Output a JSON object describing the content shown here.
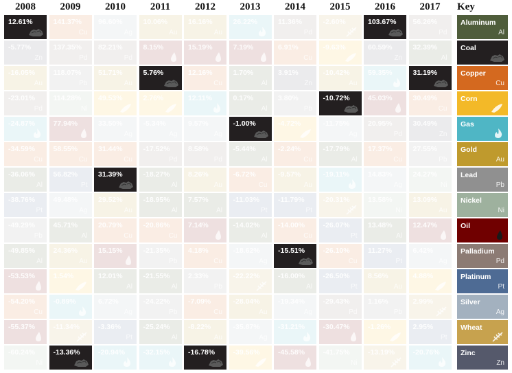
{
  "chart_data": {
    "type": "table",
    "title": "",
    "years": [
      "2008",
      "2009",
      "2010",
      "2011",
      "2012",
      "2013",
      "2014",
      "2015",
      "2016",
      "2017"
    ],
    "key_label": "Key",
    "commodities": [
      {
        "id": "aluminum",
        "name": "Aluminum",
        "symbol": "Al",
        "color": "#4f5d3b",
        "icon": "none"
      },
      {
        "id": "coal",
        "name": "Coal",
        "symbol": "",
        "color": "#231f20",
        "icon": "coal-icon"
      },
      {
        "id": "copper",
        "name": "Copper",
        "symbol": "Cu",
        "color": "#d4691f",
        "icon": "none"
      },
      {
        "id": "corn",
        "name": "Corn",
        "symbol": "",
        "color": "#f3b928",
        "icon": "corn-icon"
      },
      {
        "id": "gas",
        "name": "Gas",
        "symbol": "",
        "color": "#4fb6c5",
        "icon": "flame-icon"
      },
      {
        "id": "gold",
        "name": "Gold",
        "symbol": "Au",
        "color": "#bf9a2d",
        "icon": "none"
      },
      {
        "id": "lead",
        "name": "Lead",
        "symbol": "Pb",
        "color": "#909090",
        "icon": "none"
      },
      {
        "id": "nickel",
        "name": "Nickel",
        "symbol": "Ni",
        "color": "#9eb19e",
        "icon": "none"
      },
      {
        "id": "oil",
        "name": "Oil",
        "symbol": "",
        "color": "#700000",
        "icon": "drop-icon"
      },
      {
        "id": "palladium",
        "name": "Palladium",
        "symbol": "Pd",
        "color": "#8c7b74",
        "icon": "none"
      },
      {
        "id": "platinum",
        "name": "Platinum",
        "symbol": "Pt",
        "color": "#4e6b94",
        "icon": "none"
      },
      {
        "id": "silver",
        "name": "Silver",
        "symbol": "Ag",
        "color": "#a3b1bf",
        "icon": "none"
      },
      {
        "id": "wheat",
        "name": "Wheat",
        "symbol": "",
        "color": "#c7a24e",
        "icon": "wheat-icon"
      },
      {
        "id": "zinc",
        "name": "Zinc",
        "symbol": "Zn",
        "color": "#55596b",
        "icon": "none"
      }
    ],
    "columns": [
      {
        "year": "2008",
        "cells": [
          {
            "value": "12.61%",
            "commodity": "coal",
            "highlight": true
          },
          {
            "value": "-5.77%",
            "commodity": "zinc"
          },
          {
            "value": "-16.05%",
            "commodity": "gold"
          },
          {
            "value": "-23.01%",
            "commodity": "palladium"
          },
          {
            "value": "-24.87%",
            "commodity": "gas"
          },
          {
            "value": "-34.59%",
            "commodity": "copper"
          },
          {
            "value": "-36.06%",
            "commodity": "aluminum"
          },
          {
            "value": "-38.76%",
            "commodity": "platinum"
          },
          {
            "value": "-49.29%",
            "commodity": "lead"
          },
          {
            "value": "-49.85%",
            "commodity": "aluminum"
          },
          {
            "value": "-53.53%",
            "commodity": "oil"
          },
          {
            "value": "-54.20%",
            "commodity": "copper"
          },
          {
            "value": "-55.37%",
            "commodity": "oil"
          },
          {
            "value": "-60.24%",
            "commodity": "nickel"
          }
        ]
      },
      {
        "year": "2009",
        "cells": [
          {
            "value": "141.37%",
            "commodity": "copper"
          },
          {
            "value": "137.35%",
            "commodity": "palladium"
          },
          {
            "value": "118.07%",
            "commodity": "lead"
          },
          {
            "value": "114.28%",
            "commodity": "nickel"
          },
          {
            "value": "77.94%",
            "commodity": "oil"
          },
          {
            "value": "58.55%",
            "commodity": "copper"
          },
          {
            "value": "56.82%",
            "commodity": "platinum"
          },
          {
            "value": "49.48%",
            "commodity": "silver"
          },
          {
            "value": "45.71%",
            "commodity": "aluminum"
          },
          {
            "value": "24.36%",
            "commodity": "gold"
          },
          {
            "value": "1.54%",
            "commodity": "corn"
          },
          {
            "value": "-0.89%",
            "commodity": "gas"
          },
          {
            "value": "-11.34%",
            "commodity": "wheat"
          },
          {
            "value": "-13.36%",
            "commodity": "coal",
            "highlight": true
          }
        ]
      },
      {
        "year": "2010",
        "cells": [
          {
            "value": "96.60%",
            "commodity": "silver"
          },
          {
            "value": "82.21%",
            "commodity": "palladium"
          },
          {
            "value": "51.71%",
            "commodity": "gold"
          },
          {
            "value": "49.53%",
            "commodity": "corn"
          },
          {
            "value": "33.50%",
            "commodity": "silver"
          },
          {
            "value": "31.44%",
            "commodity": "copper"
          },
          {
            "value": "31.39%",
            "commodity": "coal",
            "highlight": true
          },
          {
            "value": "29.52%",
            "commodity": "gold"
          },
          {
            "value": "20.79%",
            "commodity": "copper"
          },
          {
            "value": "15.15%",
            "commodity": "oil"
          },
          {
            "value": "12.01%",
            "commodity": "aluminum"
          },
          {
            "value": "6.72%",
            "commodity": "silver"
          },
          {
            "value": "-3.36%",
            "commodity": "platinum"
          },
          {
            "value": "-20.94%",
            "commodity": "gas"
          }
        ]
      },
      {
        "year": "2011",
        "cells": [
          {
            "value": "10.06%",
            "commodity": "gold"
          },
          {
            "value": "8.15%",
            "commodity": "oil"
          },
          {
            "value": "5.76%",
            "commodity": "coal",
            "highlight": true
          },
          {
            "value": "2.76%",
            "commodity": "corn"
          },
          {
            "value": "-5.34%",
            "commodity": "silver"
          },
          {
            "value": "-17.52%",
            "commodity": "palladium"
          },
          {
            "value": "-18.27%",
            "commodity": "aluminum"
          },
          {
            "value": "-18.95%",
            "commodity": "aluminum"
          },
          {
            "value": "-20.86%",
            "commodity": "copper"
          },
          {
            "value": "-21.35%",
            "commodity": "lead"
          },
          {
            "value": "-21.55%",
            "commodity": "aluminum"
          },
          {
            "value": "-24.22%",
            "commodity": "lead"
          },
          {
            "value": "-25.24%",
            "commodity": "aluminum"
          },
          {
            "value": "-32.15%",
            "commodity": "gas"
          }
        ]
      },
      {
        "year": "2012",
        "cells": [
          {
            "value": "16.16%",
            "commodity": "gold"
          },
          {
            "value": "15.19%",
            "commodity": "oil"
          },
          {
            "value": "12.16%",
            "commodity": "copper"
          },
          {
            "value": "12.11%",
            "commodity": "gas"
          },
          {
            "value": "9.57%",
            "commodity": "silver"
          },
          {
            "value": "8.58%",
            "commodity": "palladium"
          },
          {
            "value": "8.26%",
            "commodity": "gold"
          },
          {
            "value": "7.57%",
            "commodity": "aluminum"
          },
          {
            "value": "7.14%",
            "commodity": "oil"
          },
          {
            "value": "4.18%",
            "commodity": "copper"
          },
          {
            "value": "2.33%",
            "commodity": "lead"
          },
          {
            "value": "-7.09%",
            "commodity": "copper"
          },
          {
            "value": "-8.22%",
            "commodity": "gold"
          },
          {
            "value": "-16.78%",
            "commodity": "coal",
            "highlight": true
          }
        ]
      },
      {
        "year": "2013",
        "cells": [
          {
            "value": "26.22%",
            "commodity": "gas"
          },
          {
            "value": "7.19%",
            "commodity": "oil"
          },
          {
            "value": "1.70%",
            "commodity": "aluminum"
          },
          {
            "value": "0.17%",
            "commodity": "aluminum"
          },
          {
            "value": "-1.00%",
            "commodity": "coal",
            "highlight": true
          },
          {
            "value": "-5.44%",
            "commodity": "aluminum"
          },
          {
            "value": "-6.72%",
            "commodity": "copper"
          },
          {
            "value": "-11.03%",
            "commodity": "platinum"
          },
          {
            "value": "-14.02%",
            "commodity": "aluminum"
          },
          {
            "value": "-18.62%",
            "commodity": "silver"
          },
          {
            "value": "-22.22%",
            "commodity": "wheat"
          },
          {
            "value": "-28.04%",
            "commodity": "gold"
          },
          {
            "value": "-35.87%",
            "commodity": "silver"
          },
          {
            "value": "-39.56%",
            "commodity": "corn"
          }
        ]
      },
      {
        "year": "2014",
        "cells": [
          {
            "value": "11.36%",
            "commodity": "palladium"
          },
          {
            "value": "6.91%",
            "commodity": "copper"
          },
          {
            "value": "3.91%",
            "commodity": "zinc"
          },
          {
            "value": "3.80%",
            "commodity": "lead"
          },
          {
            "value": "-4.72%",
            "commodity": "corn"
          },
          {
            "value": "-2.24%",
            "commodity": "copper"
          },
          {
            "value": "-9.57%",
            "commodity": "gold"
          },
          {
            "value": "-11.79%",
            "commodity": "platinum"
          },
          {
            "value": "-14.00%",
            "commodity": "copper"
          },
          {
            "value": "-15.51%",
            "commodity": "coal",
            "highlight": true
          },
          {
            "value": "-16.00%",
            "commodity": "aluminum"
          },
          {
            "value": "-19.34%",
            "commodity": "silver"
          },
          {
            "value": "-31.21%",
            "commodity": "gas"
          },
          {
            "value": "-45.58%",
            "commodity": "oil"
          }
        ]
      },
      {
        "year": "2015",
        "cells": [
          {
            "value": "-2.60%",
            "commodity": "wheat"
          },
          {
            "value": "-9.63%",
            "commodity": "corn"
          },
          {
            "value": "-10.42%",
            "commodity": "gold"
          },
          {
            "value": "-10.72%",
            "commodity": "coal",
            "highlight": true
          },
          {
            "value": "-11.75%",
            "commodity": "silver"
          },
          {
            "value": "-17.79%",
            "commodity": "aluminum"
          },
          {
            "value": "-19.11%",
            "commodity": "gas"
          },
          {
            "value": "-20.31%",
            "commodity": "wheat"
          },
          {
            "value": "-26.07%",
            "commodity": "platinum"
          },
          {
            "value": "-26.10%",
            "commodity": "copper"
          },
          {
            "value": "-26.50%",
            "commodity": "platinum"
          },
          {
            "value": "-29.43%",
            "commodity": "palladium"
          },
          {
            "value": "-30.47%",
            "commodity": "oil"
          },
          {
            "value": "-41.75%",
            "commodity": "nickel"
          }
        ]
      },
      {
        "year": "2016",
        "cells": [
          {
            "value": "103.67%",
            "commodity": "coal",
            "highlight": true
          },
          {
            "value": "60.59%",
            "commodity": "zinc"
          },
          {
            "value": "59.35%",
            "commodity": "gas"
          },
          {
            "value": "45.03%",
            "commodity": "oil"
          },
          {
            "value": "20.95%",
            "commodity": "palladium"
          },
          {
            "value": "17.37%",
            "commodity": "copper"
          },
          {
            "value": "14.83%",
            "commodity": "silver"
          },
          {
            "value": "13.58%",
            "commodity": "nickel"
          },
          {
            "value": "13.48%",
            "commodity": "aluminum"
          },
          {
            "value": "11.27%",
            "commodity": "platinum"
          },
          {
            "value": "8.56%",
            "commodity": "gold"
          },
          {
            "value": "1.16%",
            "commodity": "lead"
          },
          {
            "value": "-1.26%",
            "commodity": "corn"
          },
          {
            "value": "-13.19%",
            "commodity": "wheat"
          }
        ]
      },
      {
        "year": "2017",
        "cells": [
          {
            "value": "56.26%",
            "commodity": "palladium"
          },
          {
            "value": "32.39%",
            "commodity": "aluminum"
          },
          {
            "value": "31.19%",
            "commodity": "coal",
            "highlight": true
          },
          {
            "value": "30.49%",
            "commodity": "copper"
          },
          {
            "value": "30.49%",
            "commodity": "zinc"
          },
          {
            "value": "27.55%",
            "commodity": "lead"
          },
          {
            "value": "24.27%",
            "commodity": "nickel"
          },
          {
            "value": "13.09%",
            "commodity": "gold"
          },
          {
            "value": "12.47%",
            "commodity": "oil"
          },
          {
            "value": "6.42%",
            "commodity": "silver"
          },
          {
            "value": "4.88%",
            "commodity": "corn"
          },
          {
            "value": "2.99%",
            "commodity": "wheat"
          },
          {
            "value": "2.95%",
            "commodity": "platinum"
          },
          {
            "value": "-20.76%",
            "commodity": "gas"
          }
        ]
      }
    ]
  }
}
